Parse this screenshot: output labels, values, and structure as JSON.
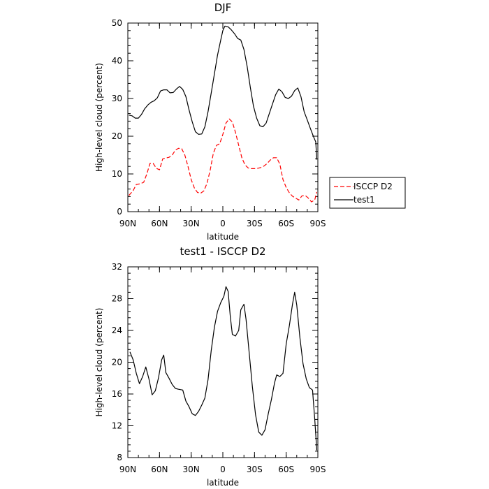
{
  "chart_data": [
    {
      "type": "line",
      "title": "DJF",
      "xlabel": "latitude",
      "ylabel": "High-level cloud (percent)",
      "xlim": [
        90,
        -90
      ],
      "ylim": [
        0,
        50
      ],
      "x_tick_values": [
        90,
        60,
        30,
        0,
        -30,
        -60,
        -90
      ],
      "x_tick_labels": [
        "90N",
        "60N",
        "30N",
        "0",
        "30S",
        "60S",
        "90S"
      ],
      "y_tick_values": [
        0,
        10,
        20,
        30,
        40,
        50
      ],
      "y_tick_labels": [
        "0",
        "10",
        "20",
        "30",
        "40",
        "50"
      ],
      "legend_position": "right",
      "series": [
        {
          "name": "ISCCP D2",
          "color": "#ff0000",
          "dash": "dashed",
          "points": [
            [
              89,
              4.3
            ],
            [
              85,
              5.6
            ],
            [
              82,
              7.2
            ],
            [
              78,
              7.4
            ],
            [
              75,
              7.8
            ],
            [
              72,
              10.0
            ],
            [
              69,
              12.8
            ],
            [
              66,
              12.8
            ],
            [
              63,
              11.5
            ],
            [
              60,
              11.1
            ],
            [
              57,
              14.0
            ],
            [
              54,
              14.2
            ],
            [
              51,
              14.4
            ],
            [
              48,
              15.0
            ],
            [
              45,
              16.3
            ],
            [
              42,
              16.8
            ],
            [
              39,
              16.7
            ],
            [
              36,
              15.0
            ],
            [
              33,
              12.0
            ],
            [
              30,
              8.5
            ],
            [
              27,
              6.3
            ],
            [
              24,
              5.1
            ],
            [
              21,
              4.9
            ],
            [
              18,
              5.5
            ],
            [
              15,
              7.5
            ],
            [
              12,
              11.0
            ],
            [
              9,
              15.5
            ],
            [
              6,
              17.6
            ],
            [
              3,
              18.0
            ],
            [
              0,
              20.5
            ],
            [
              -3,
              23.5
            ],
            [
              -6,
              24.6
            ],
            [
              -9,
              23.8
            ],
            [
              -12,
              21.0
            ],
            [
              -15,
              17.6
            ],
            [
              -18,
              14.3
            ],
            [
              -21,
              12.4
            ],
            [
              -24,
              11.6
            ],
            [
              -27,
              11.4
            ],
            [
              -30,
              11.4
            ],
            [
              -33,
              11.5
            ],
            [
              -36,
              11.7
            ],
            [
              -39,
              12.1
            ],
            [
              -42,
              12.8
            ],
            [
              -45,
              13.7
            ],
            [
              -48,
              14.3
            ],
            [
              -51,
              14.3
            ],
            [
              -54,
              12.6
            ],
            [
              -57,
              8.5
            ],
            [
              -60,
              6.4
            ],
            [
              -63,
              5.0
            ],
            [
              -66,
              4.1
            ],
            [
              -69,
              3.6
            ],
            [
              -72,
              3.1
            ],
            [
              -75,
              4.2
            ],
            [
              -78,
              4.3
            ],
            [
              -81,
              3.6
            ],
            [
              -84,
              2.6
            ],
            [
              -87,
              3.1
            ],
            [
              -89,
              5.2
            ]
          ]
        },
        {
          "name": "test1",
          "color": "#000000",
          "dash": "solid",
          "points": [
            [
              89,
              25.6
            ],
            [
              86,
              25.4
            ],
            [
              83,
              24.8
            ],
            [
              80,
              24.8
            ],
            [
              77,
              25.8
            ],
            [
              74,
              27.3
            ],
            [
              71,
              28.3
            ],
            [
              68,
              29.0
            ],
            [
              65,
              29.4
            ],
            [
              62,
              30.2
            ],
            [
              59,
              32.0
            ],
            [
              56,
              32.3
            ],
            [
              53,
              32.3
            ],
            [
              50,
              31.5
            ],
            [
              47,
              31.6
            ],
            [
              44,
              32.5
            ],
            [
              41,
              33.2
            ],
            [
              38,
              32.4
            ],
            [
              35,
              30.5
            ],
            [
              32,
              27.0
            ],
            [
              29,
              23.8
            ],
            [
              26,
              21.2
            ],
            [
              23,
              20.5
            ],
            [
              20,
              20.6
            ],
            [
              17,
              22.5
            ],
            [
              14,
              26.5
            ],
            [
              11,
              31.5
            ],
            [
              8,
              36.5
            ],
            [
              5,
              41.5
            ],
            [
              2,
              45.5
            ],
            [
              0,
              48.0
            ],
            [
              -2,
              49.2
            ],
            [
              -5,
              49.0
            ],
            [
              -8,
              48.2
            ],
            [
              -11,
              47.2
            ],
            [
              -14,
              45.9
            ],
            [
              -17,
              45.5
            ],
            [
              -20,
              43.0
            ],
            [
              -23,
              38.5
            ],
            [
              -26,
              33.0
            ],
            [
              -29,
              28.0
            ],
            [
              -32,
              24.8
            ],
            [
              -35,
              22.8
            ],
            [
              -38,
              22.5
            ],
            [
              -41,
              23.5
            ],
            [
              -44,
              26.0
            ],
            [
              -47,
              28.5
            ],
            [
              -50,
              31.0
            ],
            [
              -53,
              32.5
            ],
            [
              -56,
              31.8
            ],
            [
              -59,
              30.3
            ],
            [
              -62,
              30.0
            ],
            [
              -65,
              30.6
            ],
            [
              -68,
              32.1
            ],
            [
              -71,
              32.8
            ],
            [
              -74,
              30.5
            ],
            [
              -77,
              26.5
            ],
            [
              -80,
              24.3
            ],
            [
              -83,
              22.0
            ],
            [
              -86,
              19.8
            ],
            [
              -88,
              18.5
            ],
            [
              -89,
              13.8
            ]
          ]
        }
      ]
    },
    {
      "type": "line",
      "title": "test1 - ISCCP D2",
      "xlabel": "latitude",
      "ylabel": "High-level cloud (percent)",
      "xlim": [
        90,
        -90
      ],
      "ylim": [
        8,
        32
      ],
      "x_tick_values": [
        90,
        60,
        30,
        0,
        -30,
        -60,
        -90
      ],
      "x_tick_labels": [
        "90N",
        "60N",
        "30N",
        "0",
        "30S",
        "60S",
        "90S"
      ],
      "y_tick_values": [
        8,
        12,
        16,
        20,
        24,
        28,
        32
      ],
      "y_tick_labels": [
        "8",
        "12",
        "16",
        "20",
        "24",
        "28",
        "32"
      ],
      "series": [
        {
          "color": "#000000",
          "dash": "solid",
          "points": [
            [
              88,
              21.3
            ],
            [
              85,
              20.3
            ],
            [
              82,
              18.6
            ],
            [
              79,
              17.3
            ],
            [
              76,
              18.2
            ],
            [
              73,
              19.4
            ],
            [
              70,
              17.9
            ],
            [
              67,
              15.9
            ],
            [
              64,
              16.4
            ],
            [
              61,
              18.0
            ],
            [
              58,
              20.3
            ],
            [
              56,
              20.9
            ],
            [
              54,
              18.7
            ],
            [
              51,
              18.0
            ],
            [
              48,
              17.2
            ],
            [
              45,
              16.7
            ],
            [
              42,
              16.6
            ],
            [
              38,
              16.5
            ],
            [
              35,
              15.1
            ],
            [
              32,
              14.4
            ],
            [
              29,
              13.5
            ],
            [
              26,
              13.3
            ],
            [
              23,
              13.8
            ],
            [
              20,
              14.6
            ],
            [
              17,
              15.5
            ],
            [
              14,
              17.8
            ],
            [
              11,
              21.5
            ],
            [
              8,
              24.4
            ],
            [
              5,
              26.4
            ],
            [
              2,
              27.5
            ],
            [
              -1,
              28.3
            ],
            [
              -3,
              29.5
            ],
            [
              -5,
              28.9
            ],
            [
              -7,
              25.8
            ],
            [
              -9,
              23.5
            ],
            [
              -12,
              23.3
            ],
            [
              -15,
              24.0
            ],
            [
              -17,
              26.6
            ],
            [
              -20,
              27.3
            ],
            [
              -22,
              25.4
            ],
            [
              -25,
              21.1
            ],
            [
              -28,
              16.9
            ],
            [
              -31,
              13.4
            ],
            [
              -34,
              11.2
            ],
            [
              -37,
              10.8
            ],
            [
              -40,
              11.5
            ],
            [
              -43,
              13.5
            ],
            [
              -46,
              15.3
            ],
            [
              -49,
              17.4
            ],
            [
              -51,
              18.4
            ],
            [
              -54,
              18.2
            ],
            [
              -57,
              18.6
            ],
            [
              -60,
              22.3
            ],
            [
              -63,
              24.6
            ],
            [
              -66,
              27.3
            ],
            [
              -68,
              28.8
            ],
            [
              -70,
              27.2
            ],
            [
              -73,
              23.1
            ],
            [
              -76,
              19.8
            ],
            [
              -79,
              17.9
            ],
            [
              -82,
              16.8
            ],
            [
              -85,
              16.5
            ],
            [
              -87,
              12.9
            ],
            [
              -89,
              8.9
            ]
          ]
        }
      ]
    }
  ]
}
